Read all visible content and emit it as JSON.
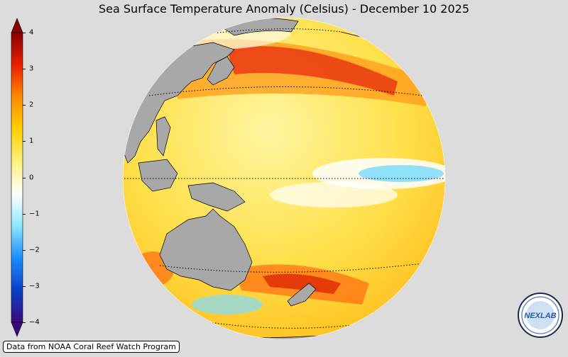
{
  "title": "Sea Surface Temperature Anomaly (Celsius) - December 10 2025",
  "colorbar": {
    "min": -4,
    "max": 4,
    "ticks": [
      "4",
      "3",
      "2",
      "1",
      "0",
      "−1",
      "−2",
      "−3",
      "−4"
    ],
    "tick_values": [
      4,
      3,
      2,
      1,
      0,
      -1,
      -2,
      -3,
      -4
    ],
    "colors": [
      "#3a0a7a",
      "#0a40c8",
      "#1a8cff",
      "#8ee8ff",
      "#ffffff",
      "#fff07a",
      "#ffd000",
      "#ff8a00",
      "#e81e00",
      "#8a0000"
    ]
  },
  "map": {
    "projection": "orthographic",
    "land_color": "#a8a8a8",
    "ocean_base_color": "#ffe060",
    "graticule_lines": [
      "Equator",
      "Tropic of Cancer",
      "Tropic of Capricorn",
      "Arctic latitude 45N",
      "Southern latitude 45S"
    ]
  },
  "credit": "Data from NOAA Coral Reef Watch Program",
  "logo_text": "NEXLAB"
}
